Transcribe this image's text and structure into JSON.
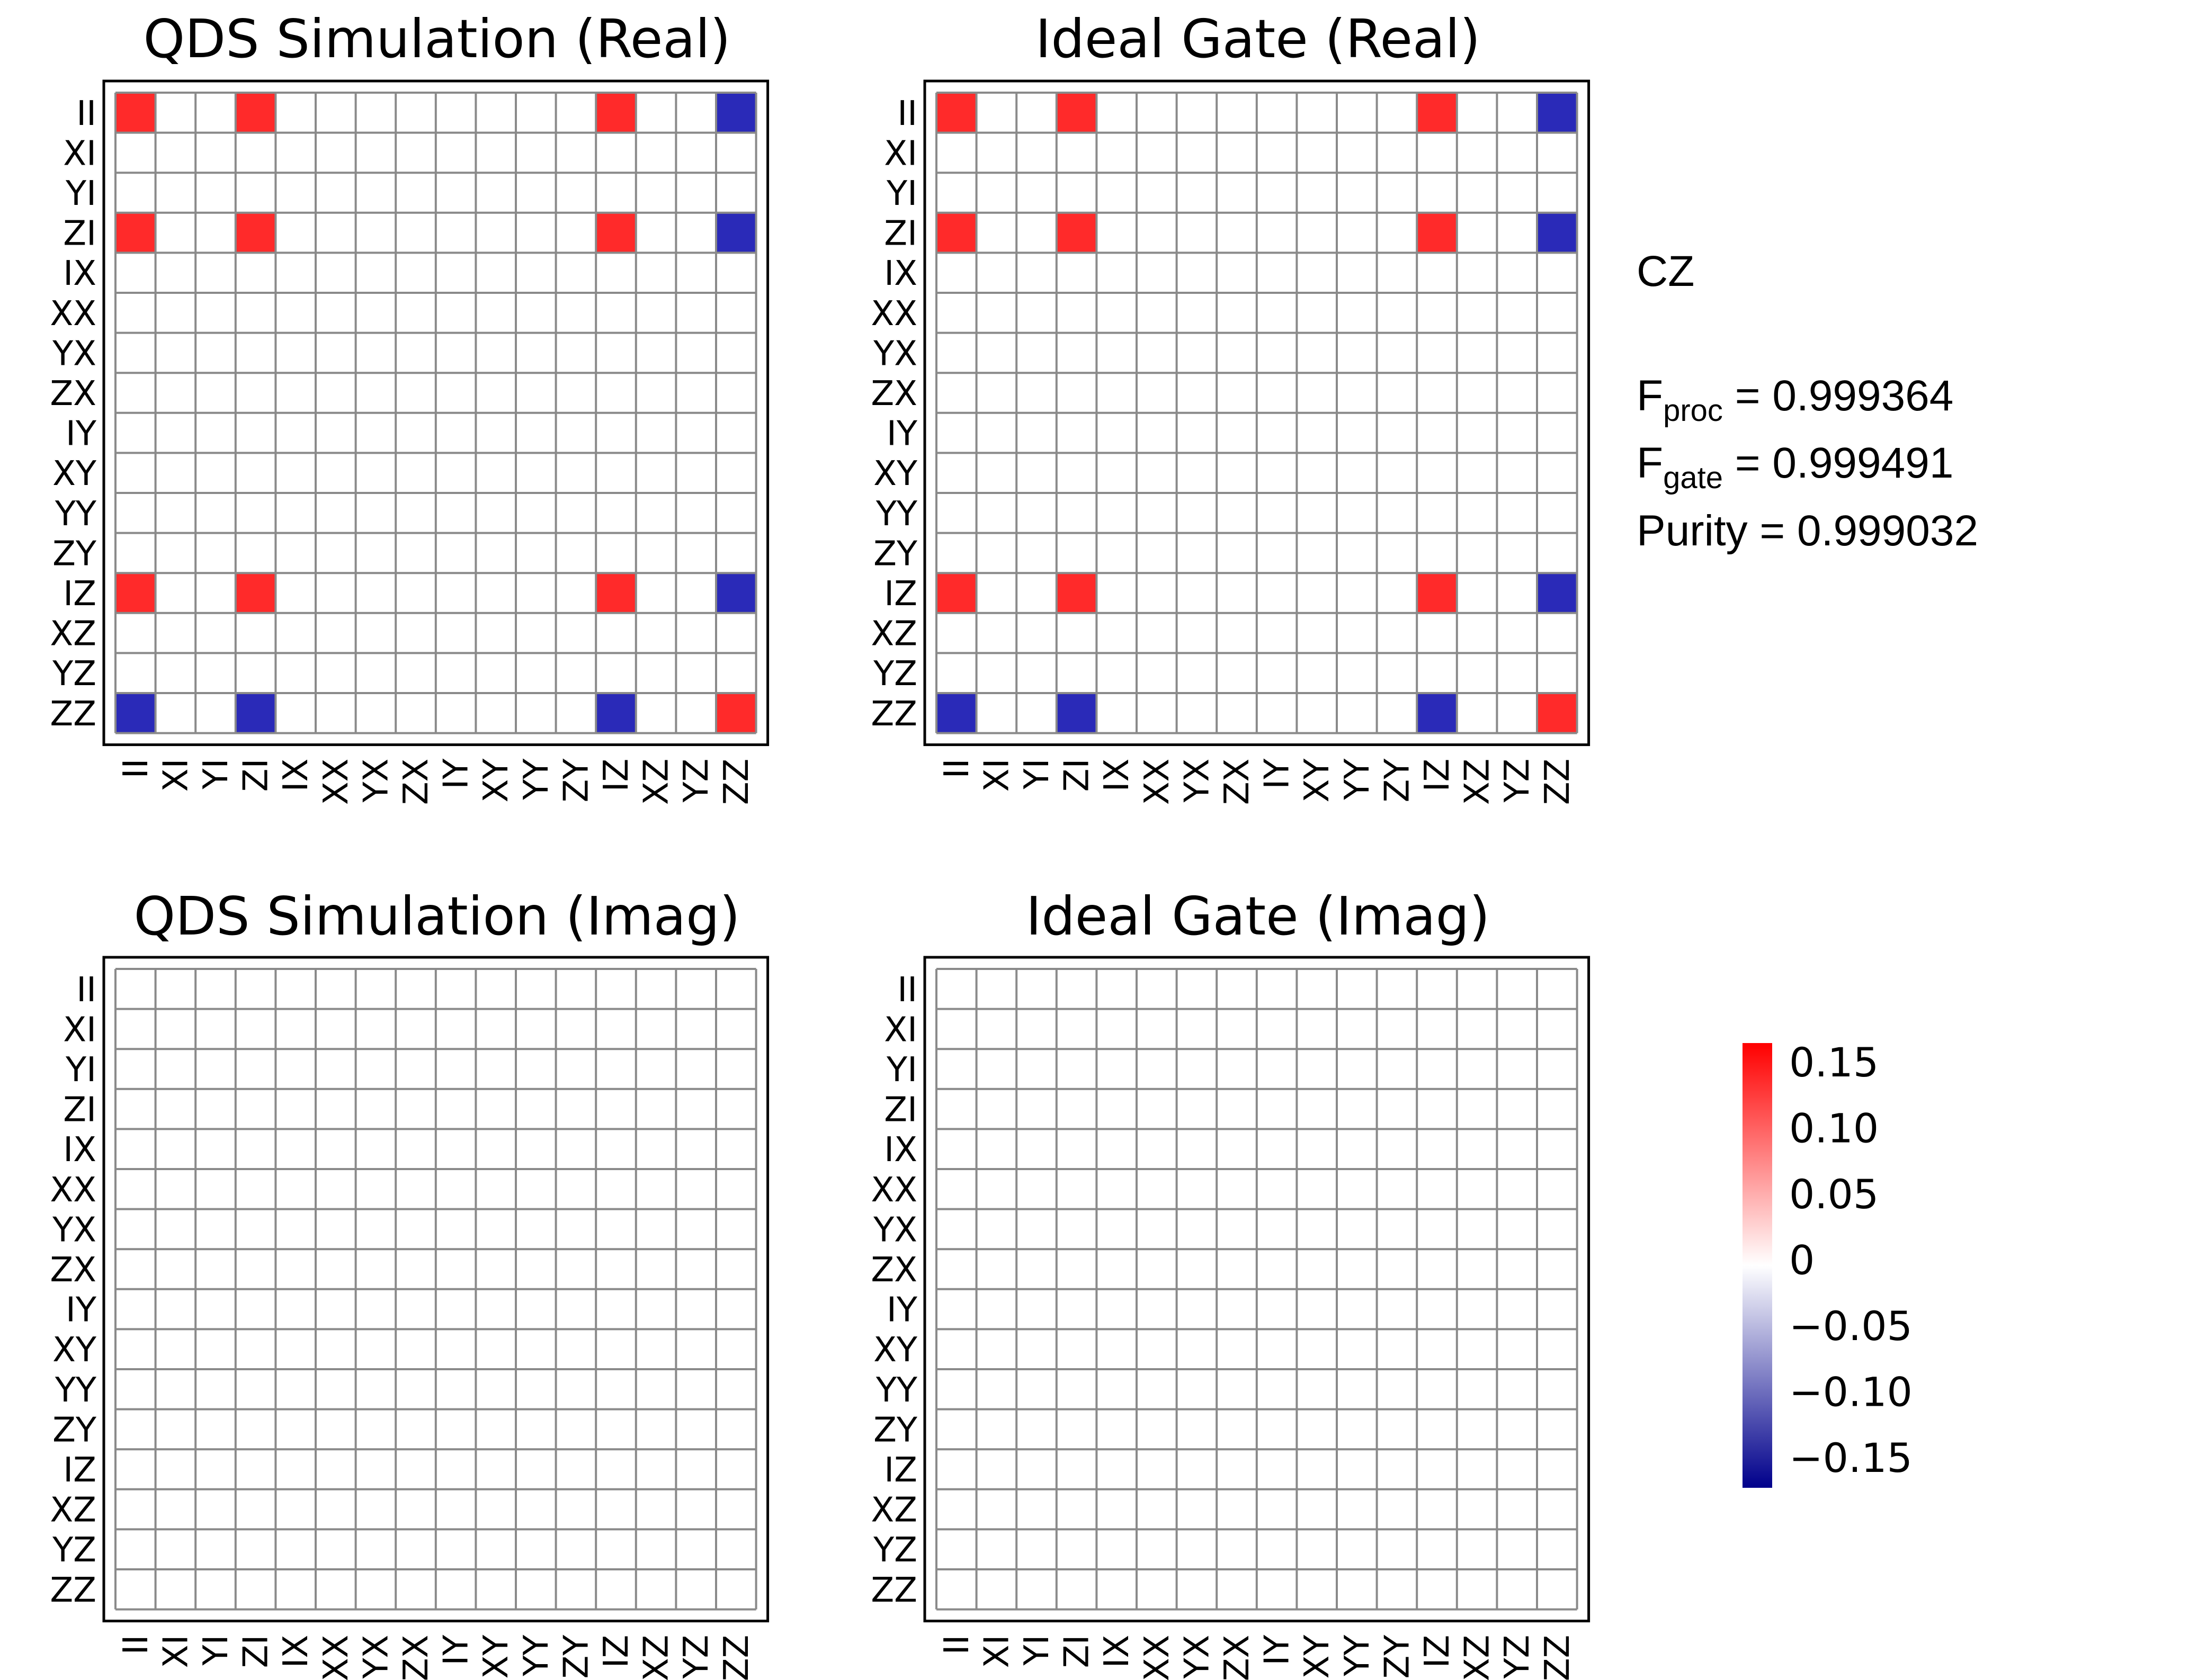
{
  "chart_data": [
    {
      "type": "heatmap",
      "title": "QDS Simulation (Real)",
      "labels": [
        "II",
        "XI",
        "YI",
        "ZI",
        "IX",
        "XX",
        "YX",
        "ZX",
        "IY",
        "XY",
        "YY",
        "ZY",
        "IZ",
        "XZ",
        "YZ",
        "ZZ"
      ],
      "colorbar_range": [
        -0.15,
        0.15
      ],
      "cells": [
        {
          "row": "II",
          "col": "II",
          "value": 0.125
        },
        {
          "row": "II",
          "col": "ZI",
          "value": 0.125
        },
        {
          "row": "II",
          "col": "IZ",
          "value": 0.125
        },
        {
          "row": "II",
          "col": "ZZ",
          "value": -0.125
        },
        {
          "row": "ZI",
          "col": "II",
          "value": 0.125
        },
        {
          "row": "ZI",
          "col": "ZI",
          "value": 0.125
        },
        {
          "row": "ZI",
          "col": "IZ",
          "value": 0.125
        },
        {
          "row": "ZI",
          "col": "ZZ",
          "value": -0.125
        },
        {
          "row": "IZ",
          "col": "II",
          "value": 0.125
        },
        {
          "row": "IZ",
          "col": "ZI",
          "value": 0.125
        },
        {
          "row": "IZ",
          "col": "IZ",
          "value": 0.125
        },
        {
          "row": "IZ",
          "col": "ZZ",
          "value": -0.125
        },
        {
          "row": "ZZ",
          "col": "II",
          "value": -0.125
        },
        {
          "row": "ZZ",
          "col": "ZI",
          "value": -0.125
        },
        {
          "row": "ZZ",
          "col": "IZ",
          "value": -0.125
        },
        {
          "row": "ZZ",
          "col": "ZZ",
          "value": 0.125
        }
      ]
    },
    {
      "type": "heatmap",
      "title": "Ideal Gate (Real)",
      "labels": [
        "II",
        "XI",
        "YI",
        "ZI",
        "IX",
        "XX",
        "YX",
        "ZX",
        "IY",
        "XY",
        "YY",
        "ZY",
        "IZ",
        "XZ",
        "YZ",
        "ZZ"
      ],
      "colorbar_range": [
        -0.15,
        0.15
      ],
      "cells": [
        {
          "row": "II",
          "col": "II",
          "value": 0.125
        },
        {
          "row": "II",
          "col": "ZI",
          "value": 0.125
        },
        {
          "row": "II",
          "col": "IZ",
          "value": 0.125
        },
        {
          "row": "II",
          "col": "ZZ",
          "value": -0.125
        },
        {
          "row": "ZI",
          "col": "II",
          "value": 0.125
        },
        {
          "row": "ZI",
          "col": "ZI",
          "value": 0.125
        },
        {
          "row": "ZI",
          "col": "IZ",
          "value": 0.125
        },
        {
          "row": "ZI",
          "col": "ZZ",
          "value": -0.125
        },
        {
          "row": "IZ",
          "col": "II",
          "value": 0.125
        },
        {
          "row": "IZ",
          "col": "ZI",
          "value": 0.125
        },
        {
          "row": "IZ",
          "col": "IZ",
          "value": 0.125
        },
        {
          "row": "IZ",
          "col": "ZZ",
          "value": -0.125
        },
        {
          "row": "ZZ",
          "col": "II",
          "value": -0.125
        },
        {
          "row": "ZZ",
          "col": "ZI",
          "value": -0.125
        },
        {
          "row": "ZZ",
          "col": "IZ",
          "value": -0.125
        },
        {
          "row": "ZZ",
          "col": "ZZ",
          "value": 0.125
        }
      ]
    },
    {
      "type": "heatmap",
      "title": "QDS Simulation (Imag)",
      "labels": [
        "II",
        "XI",
        "YI",
        "ZI",
        "IX",
        "XX",
        "YX",
        "ZX",
        "IY",
        "XY",
        "YY",
        "ZY",
        "IZ",
        "XZ",
        "YZ",
        "ZZ"
      ],
      "colorbar_range": [
        -0.15,
        0.15
      ],
      "cells": []
    },
    {
      "type": "heatmap",
      "title": "Ideal Gate (Imag)",
      "labels": [
        "II",
        "XI",
        "YI",
        "ZI",
        "IX",
        "XX",
        "YX",
        "ZX",
        "IY",
        "XY",
        "YY",
        "ZY",
        "IZ",
        "XZ",
        "YZ",
        "ZZ"
      ],
      "colorbar_range": [
        -0.15,
        0.15
      ],
      "cells": []
    }
  ],
  "info": {
    "gate": "CZ",
    "fproc_label": "F",
    "fproc_sub": "proc",
    "fproc_value": " = 0.999364",
    "fgate_label": "F",
    "fgate_sub": "gate",
    "fgate_value": " = 0.999491",
    "purity": "Purity = 0.999032"
  },
  "colorbar": {
    "ticks": [
      "0.15",
      "0.10",
      "0.05",
      "0",
      "−0.05",
      "−0.10",
      "−0.15"
    ],
    "colors": {
      "max": "#ff0000",
      "zero": "#ffffff",
      "min": "#00008b"
    }
  },
  "colors": {
    "positive": "#ff0000",
    "negative": "#0000aa",
    "grid": "#8a8a8a",
    "frame": "#000000"
  }
}
